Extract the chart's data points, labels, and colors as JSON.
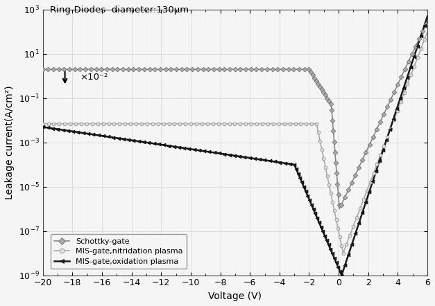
{
  "title_annotation": "Ring-Diodes  diameter:130μm",
  "xlabel": "Voltage (V)",
  "ylabel": "Leakage current(A/cm²)",
  "xlim": [
    -20,
    6
  ],
  "ylim_log": [
    -9,
    3
  ],
  "annotation_x10": "×10⁻²",
  "curves": {
    "schottky": {
      "label": "Schottky-gate",
      "color": "#888888",
      "marker": "D",
      "markersize": 3.5,
      "linewidth": 1.2
    },
    "mis_nitridation": {
      "label": "MIS-gate,nitridation plasma",
      "color": "#aaaaaa",
      "marker": "o",
      "markersize": 3.5,
      "linewidth": 1.2
    },
    "mis_oxidation": {
      "label": "MIS-gate,oxidation plasma",
      "color": "#1a1a1a",
      "marker": "<",
      "markersize": 3.5,
      "linewidth": 1.8
    }
  },
  "background_color": "#f5f5f5",
  "grid_color": "#cccccc"
}
